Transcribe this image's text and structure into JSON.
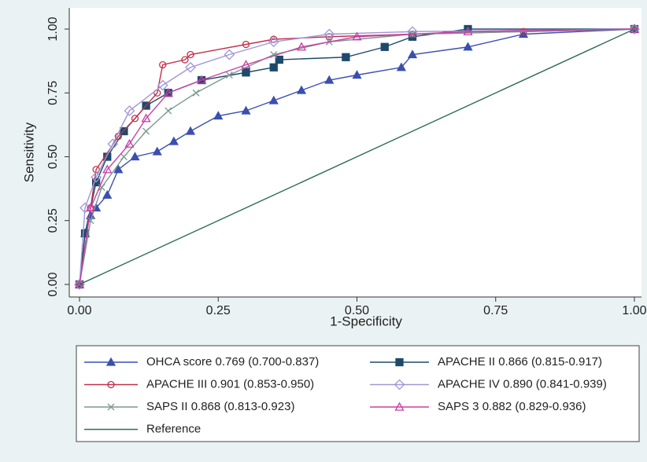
{
  "chart_data": {
    "type": "line",
    "xlabel": "1-Specificity",
    "ylabel": "Sensitivity",
    "xlim": [
      0,
      1
    ],
    "ylim": [
      0,
      1
    ],
    "xticks": [
      {
        "value": 0,
        "label": "0.00"
      },
      {
        "value": 0.25,
        "label": "0.25"
      },
      {
        "value": 0.5,
        "label": "0.50"
      },
      {
        "value": 0.75,
        "label": "0.75"
      },
      {
        "value": 1,
        "label": "1.00"
      }
    ],
    "yticks": [
      {
        "value": 0,
        "label": "0.00"
      },
      {
        "value": 0.25,
        "label": "0.25"
      },
      {
        "value": 0.5,
        "label": "0.50"
      },
      {
        "value": 0.75,
        "label": "0.75"
      },
      {
        "value": 1,
        "label": "1.00"
      }
    ],
    "grid": false,
    "series": [
      {
        "name": "OHCA score 0.769 (0.700-0.837)",
        "color": "#3a4fb0",
        "marker": "triangle",
        "filled": true,
        "x": [
          0,
          0.01,
          0.02,
          0.03,
          0.05,
          0.07,
          0.1,
          0.14,
          0.17,
          0.2,
          0.25,
          0.3,
          0.35,
          0.4,
          0.45,
          0.5,
          0.58,
          0.6,
          0.7,
          0.8,
          1
        ],
        "values": [
          0,
          0.2,
          0.27,
          0.3,
          0.35,
          0.45,
          0.5,
          0.52,
          0.56,
          0.6,
          0.66,
          0.68,
          0.72,
          0.76,
          0.8,
          0.82,
          0.85,
          0.9,
          0.93,
          0.98,
          1
        ]
      },
      {
        "name": "APACHE II 0.866 (0.815-0.917)",
        "color": "#1d4a6a",
        "marker": "square",
        "filled": true,
        "x": [
          0,
          0.01,
          0.03,
          0.05,
          0.08,
          0.12,
          0.16,
          0.22,
          0.3,
          0.35,
          0.36,
          0.48,
          0.55,
          0.6,
          0.7,
          1
        ],
        "values": [
          0,
          0.2,
          0.4,
          0.5,
          0.6,
          0.7,
          0.75,
          0.8,
          0.83,
          0.85,
          0.88,
          0.89,
          0.93,
          0.97,
          1,
          1
        ]
      },
      {
        "name": "APACHE III 0.901 (0.853-0.950)",
        "color": "#c2304a",
        "marker": "circle",
        "filled": false,
        "x": [
          0,
          0.02,
          0.03,
          0.07,
          0.1,
          0.14,
          0.15,
          0.19,
          0.2,
          0.3,
          0.35,
          0.45,
          0.6,
          0.8,
          1
        ],
        "values": [
          0,
          0.3,
          0.45,
          0.58,
          0.65,
          0.75,
          0.86,
          0.88,
          0.9,
          0.94,
          0.96,
          0.97,
          0.98,
          0.99,
          1
        ]
      },
      {
        "name": "APACHE IV 0.890 (0.841-0.939)",
        "color": "#9f97d6",
        "marker": "diamond",
        "filled": false,
        "x": [
          0,
          0.01,
          0.03,
          0.06,
          0.09,
          0.15,
          0.2,
          0.27,
          0.35,
          0.45,
          0.6,
          1
        ],
        "values": [
          0,
          0.3,
          0.42,
          0.55,
          0.68,
          0.78,
          0.85,
          0.9,
          0.95,
          0.98,
          0.99,
          1
        ]
      },
      {
        "name": "SAPS II 0.868 (0.813-0.923)",
        "color": "#7a9a90",
        "marker": "x",
        "filled": false,
        "x": [
          0,
          0.02,
          0.04,
          0.08,
          0.12,
          0.16,
          0.21,
          0.27,
          0.35,
          0.45,
          0.6,
          1
        ],
        "values": [
          0,
          0.25,
          0.38,
          0.5,
          0.6,
          0.68,
          0.75,
          0.82,
          0.9,
          0.95,
          0.98,
          1
        ]
      },
      {
        "name": "SAPS 3 0.882 (0.829-0.936)",
        "color": "#c93fa8",
        "marker": "triangle",
        "filled": false,
        "x": [
          0,
          0.02,
          0.05,
          0.09,
          0.12,
          0.16,
          0.22,
          0.3,
          0.4,
          0.5,
          0.7,
          1
        ],
        "values": [
          0,
          0.3,
          0.45,
          0.55,
          0.65,
          0.75,
          0.8,
          0.86,
          0.93,
          0.97,
          0.99,
          1
        ]
      },
      {
        "name": "Reference",
        "color": "#2e6b5a",
        "marker": "none",
        "filled": false,
        "x": [
          0,
          1
        ],
        "values": [
          0,
          1
        ]
      }
    ]
  }
}
